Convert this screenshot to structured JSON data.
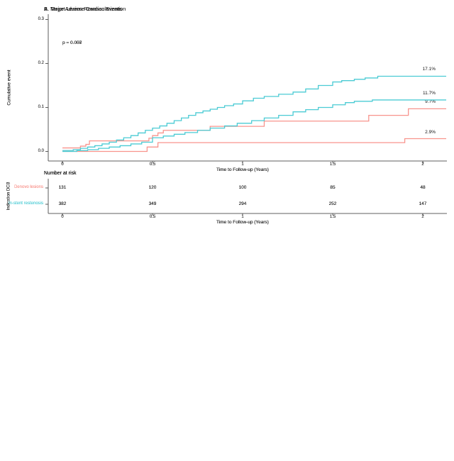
{
  "chart_data": [
    {
      "type": "line",
      "subtype": "kaplan-meier-cumulative-incidence-step",
      "title": "A. Major Adverse Cardiac Events",
      "p_value_label": "p = 0.058",
      "xlabel": "Time to Follow-up (Years)",
      "ylabel": "Cumulative event",
      "xlim": [
        0,
        2.13
      ],
      "ylim": [
        0,
        0.3
      ],
      "xticks": [
        0,
        0.5,
        1,
        1.5,
        2
      ],
      "yticks": [
        0.0,
        0.1,
        0.2,
        0.3
      ],
      "grid": false,
      "legend_position": "none",
      "series": [
        {
          "name": "Denovo lesions",
          "color": "#F8948D",
          "end_label": "9.7%",
          "steps": [
            [
              0,
              0.008
            ],
            [
              0.1,
              0.012
            ],
            [
              0.13,
              0.016
            ],
            [
              0.15,
              0.024
            ],
            [
              0.48,
              0.03
            ],
            [
              0.5,
              0.036
            ],
            [
              0.53,
              0.042
            ],
            [
              0.56,
              0.048
            ],
            [
              0.82,
              0.057
            ],
            [
              1.12,
              0.069
            ],
            [
              1.7,
              0.082
            ],
            [
              1.92,
              0.097
            ],
            [
              2.13,
              0.097
            ]
          ]
        },
        {
          "name": "In-stent restenosis",
          "color": "#4BCBD4",
          "end_label": "17.1%",
          "steps": [
            [
              0,
              0.002
            ],
            [
              0.06,
              0.004
            ],
            [
              0.1,
              0.007
            ],
            [
              0.14,
              0.01
            ],
            [
              0.18,
              0.013
            ],
            [
              0.22,
              0.017
            ],
            [
              0.26,
              0.021
            ],
            [
              0.3,
              0.026
            ],
            [
              0.34,
              0.031
            ],
            [
              0.38,
              0.036
            ],
            [
              0.42,
              0.042
            ],
            [
              0.46,
              0.048
            ],
            [
              0.5,
              0.053
            ],
            [
              0.54,
              0.058
            ],
            [
              0.58,
              0.064
            ],
            [
              0.62,
              0.07
            ],
            [
              0.66,
              0.076
            ],
            [
              0.7,
              0.082
            ],
            [
              0.74,
              0.088
            ],
            [
              0.78,
              0.092
            ],
            [
              0.82,
              0.096
            ],
            [
              0.86,
              0.1
            ],
            [
              0.9,
              0.104
            ],
            [
              0.95,
              0.108
            ],
            [
              1.0,
              0.115
            ],
            [
              1.06,
              0.121
            ],
            [
              1.12,
              0.125
            ],
            [
              1.2,
              0.13
            ],
            [
              1.28,
              0.135
            ],
            [
              1.35,
              0.142
            ],
            [
              1.42,
              0.15
            ],
            [
              1.5,
              0.158
            ],
            [
              1.55,
              0.161
            ],
            [
              1.62,
              0.164
            ],
            [
              1.68,
              0.167
            ],
            [
              1.75,
              0.171
            ],
            [
              2.13,
              0.171
            ]
          ]
        }
      ],
      "risk_table": {
        "title": "Number at risk",
        "group_axis_label": "Indication DCB",
        "time_points": [
          0,
          0.5,
          1,
          1.5,
          2
        ],
        "rows": [
          {
            "label": "Denovo lesions",
            "color": "#F8948D",
            "counts": [
              131,
              120,
              100,
              85,
              48
            ]
          },
          {
            "label": "In-stent restenosis",
            "color": "#4BCBD4",
            "counts": [
              382,
              349,
              294,
              252,
              147
            ]
          }
        ]
      }
    },
    {
      "type": "line",
      "subtype": "kaplan-meier-cumulative-incidence-step",
      "title": "B. Target Lesion Revascularization",
      "p_value_label": "p = 0.007",
      "xlabel": "Time to Follow-up (Years)",
      "ylabel": "Cumulative event",
      "xlim": [
        0,
        2.13
      ],
      "ylim": [
        0,
        0.3
      ],
      "xticks": [
        0,
        0.5,
        1,
        1.5,
        2
      ],
      "yticks": [
        0.0,
        0.1,
        0.2,
        0.3
      ],
      "grid": false,
      "legend_position": "none",
      "series": [
        {
          "name": "Denovo lesions",
          "color": "#F8948D",
          "end_label": "2.9%",
          "steps": [
            [
              0,
              0
            ],
            [
              0.47,
              0.01
            ],
            [
              0.53,
              0.02
            ],
            [
              1.9,
              0.029
            ],
            [
              2.13,
              0.029
            ]
          ]
        },
        {
          "name": "In-stent restenosis",
          "color": "#4BCBD4",
          "end_label": "11.7%",
          "steps": [
            [
              0,
              0
            ],
            [
              0.08,
              0.002
            ],
            [
              0.14,
              0.004
            ],
            [
              0.2,
              0.007
            ],
            [
              0.26,
              0.01
            ],
            [
              0.32,
              0.013
            ],
            [
              0.38,
              0.017
            ],
            [
              0.44,
              0.021
            ],
            [
              0.5,
              0.031
            ],
            [
              0.56,
              0.035
            ],
            [
              0.62,
              0.039
            ],
            [
              0.68,
              0.043
            ],
            [
              0.75,
              0.048
            ],
            [
              0.82,
              0.053
            ],
            [
              0.9,
              0.058
            ],
            [
              0.97,
              0.064
            ],
            [
              1.05,
              0.07
            ],
            [
              1.12,
              0.076
            ],
            [
              1.2,
              0.082
            ],
            [
              1.28,
              0.09
            ],
            [
              1.35,
              0.095
            ],
            [
              1.42,
              0.1
            ],
            [
              1.5,
              0.106
            ],
            [
              1.57,
              0.111
            ],
            [
              1.62,
              0.114
            ],
            [
              1.72,
              0.117
            ],
            [
              2.13,
              0.117
            ]
          ]
        }
      ],
      "risk_table": {
        "title": "Number at risk",
        "group_axis_label": "Indication DCB",
        "time_points": [
          0,
          0.5,
          1,
          1.5,
          2
        ],
        "rows": [
          {
            "label": "Denovo lesions",
            "color": "#F8948D",
            "counts": [
              131,
              120,
              100,
              85,
              48
            ]
          },
          {
            "label": "In-stent restenosis",
            "color": "#4BCBD4",
            "counts": [
              382,
              349,
              294,
              252,
              147
            ]
          }
        ]
      }
    }
  ]
}
